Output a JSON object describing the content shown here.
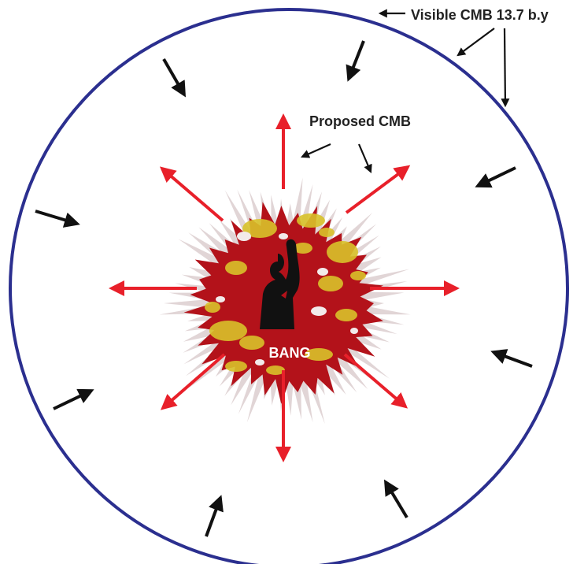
{
  "labels": {
    "visible_cmb": "Visible CMB 13.7 b.y",
    "proposed_cmb": "Proposed CMB",
    "bang": "BANG"
  },
  "colors": {
    "circle": "#2b2f8f",
    "outward_arrow": "#e8202a",
    "inward_arrow": "#111111",
    "blast_red": "#b3121a",
    "blast_yellow": "#d8c22a",
    "figure": "#111111",
    "background": "#ffffff"
  },
  "icons": {
    "figure": "raised-fist-figure-icon",
    "blast": "explosion-icon"
  }
}
